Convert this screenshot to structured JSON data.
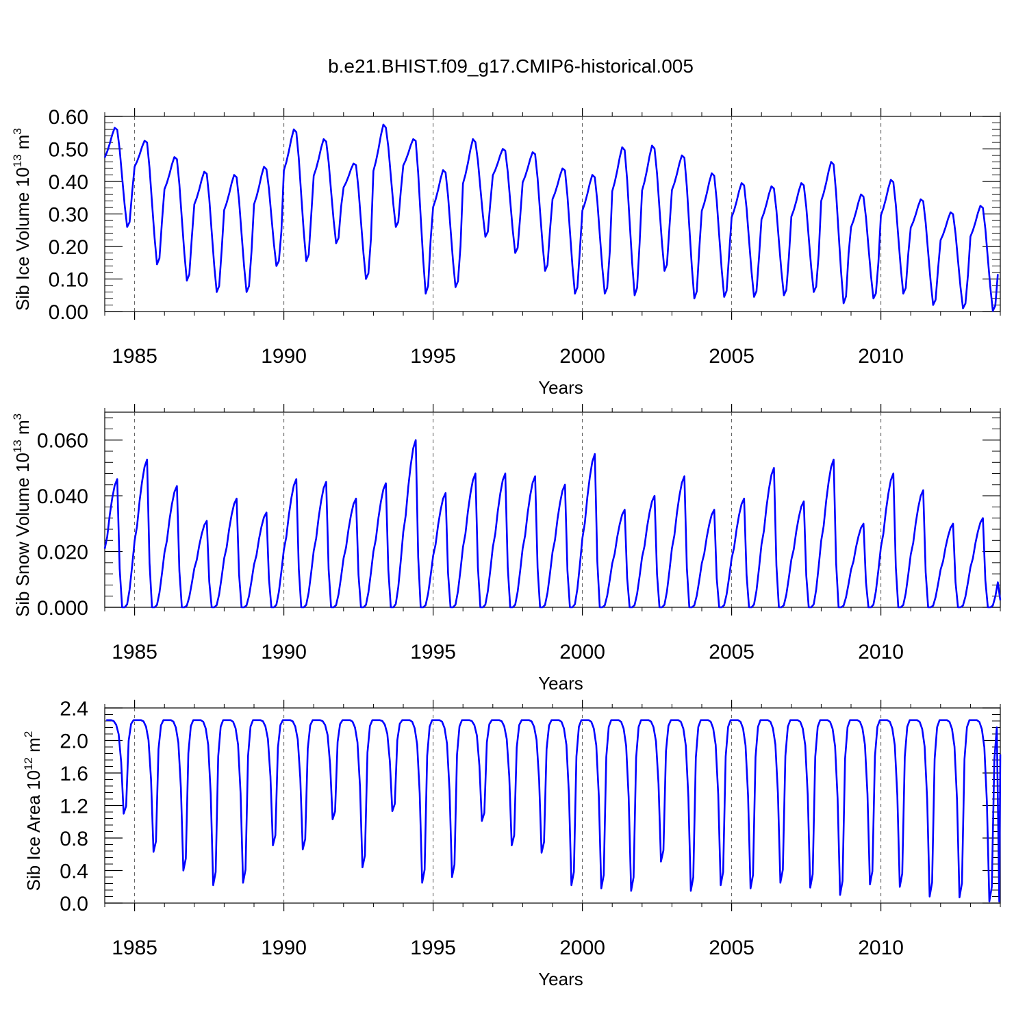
{
  "title": "b.e21.BHIST.f09_g17.CMIP6-historical.005",
  "series_color": "#0000ff",
  "chart_data": [
    {
      "type": "line",
      "name": "sib-ice-volume",
      "ylabel": {
        "prefix": "Sib Ice Volume 10",
        "exp": "13",
        "unit": " m",
        "unit_exp": "3"
      },
      "xlabel": "Years",
      "xlim": [
        1984.0,
        2014.0
      ],
      "ylim": [
        0.0,
        0.6
      ],
      "yticks": [
        0.0,
        0.1,
        0.2,
        0.3,
        0.4,
        0.5,
        0.6
      ],
      "ytick_labels": [
        "0.00",
        "0.10",
        "0.20",
        "0.30",
        "0.40",
        "0.50",
        "0.60"
      ],
      "xticks": [
        1985,
        1990,
        1995,
        2000,
        2005,
        2010
      ],
      "xtick_labels": [
        "1985",
        "1990",
        "1995",
        "2000",
        "2005",
        "2010"
      ],
      "years_min": [
        0.26,
        0.145,
        0.095,
        0.06,
        0.06,
        0.14,
        0.155,
        0.21,
        0.1,
        0.26,
        0.055,
        0.075,
        0.23,
        0.18,
        0.125,
        0.055,
        0.055,
        0.05,
        0.125,
        0.04,
        0.045,
        0.045,
        0.05,
        0.06,
        0.025,
        0.04,
        0.055,
        0.02,
        0.01,
        0.002
      ],
      "years_max": [
        0.565,
        0.525,
        0.475,
        0.43,
        0.42,
        0.445,
        0.56,
        0.53,
        0.455,
        0.575,
        0.53,
        0.435,
        0.53,
        0.5,
        0.49,
        0.44,
        0.42,
        0.505,
        0.51,
        0.48,
        0.425,
        0.395,
        0.385,
        0.395,
        0.46,
        0.36,
        0.405,
        0.345,
        0.305,
        0.325
      ]
    },
    {
      "type": "line",
      "name": "sib-snow-volume",
      "ylabel": {
        "prefix": "Sib Snow Volume 10",
        "exp": "13",
        "unit": " m",
        "unit_exp": "3"
      },
      "xlabel": "Years",
      "xlim": [
        1984.0,
        2014.0
      ],
      "ylim": [
        0.0,
        0.07
      ],
      "yticks": [
        0.0,
        0.02,
        0.04,
        0.06
      ],
      "ytick_labels": [
        "0.000",
        "0.020",
        "0.040",
        "0.060"
      ],
      "xticks": [
        1985,
        1990,
        1995,
        2000,
        2005,
        2010
      ],
      "xtick_labels": [
        "1985",
        "1990",
        "1995",
        "2000",
        "2005",
        "2010"
      ],
      "years_max": [
        0.046,
        0.053,
        0.0435,
        0.031,
        0.039,
        0.034,
        0.046,
        0.045,
        0.039,
        0.0445,
        0.06,
        0.041,
        0.048,
        0.048,
        0.047,
        0.044,
        0.055,
        0.035,
        0.04,
        0.047,
        0.035,
        0.039,
        0.05,
        0.038,
        0.053,
        0.03,
        0.048,
        0.042,
        0.03,
        0.032
      ],
      "start_value": 0.021,
      "end_value": 0.0025
    },
    {
      "type": "line",
      "name": "sib-ice-area",
      "ylabel": {
        "prefix": "Sib Ice Area 10",
        "exp": "12",
        "unit": " m",
        "unit_exp": "2"
      },
      "xlabel": "Years",
      "xlim": [
        1984.0,
        2014.0
      ],
      "ylim": [
        0.0,
        2.4
      ],
      "yticks": [
        0.0,
        0.4,
        0.8,
        1.2,
        1.6,
        2.0,
        2.4
      ],
      "ytick_labels": [
        "0.0",
        "0.4",
        "0.8",
        "1.2",
        "1.6",
        "2.0",
        "2.4"
      ],
      "xticks": [
        1985,
        1990,
        1995,
        2000,
        2005,
        2010
      ],
      "xtick_labels": [
        "1985",
        "1990",
        "1995",
        "2000",
        "2005",
        "2010"
      ],
      "years_min": [
        1.1,
        0.63,
        0.4,
        0.22,
        0.25,
        0.71,
        0.66,
        1.03,
        0.44,
        1.13,
        0.25,
        0.32,
        1.01,
        0.71,
        0.62,
        0.22,
        0.18,
        0.15,
        0.51,
        0.15,
        0.22,
        0.18,
        0.25,
        0.19,
        0.1,
        0.23,
        0.2,
        0.08,
        0.07,
        0.02
      ],
      "plateau": 2.25,
      "end_value": 1.83
    }
  ]
}
